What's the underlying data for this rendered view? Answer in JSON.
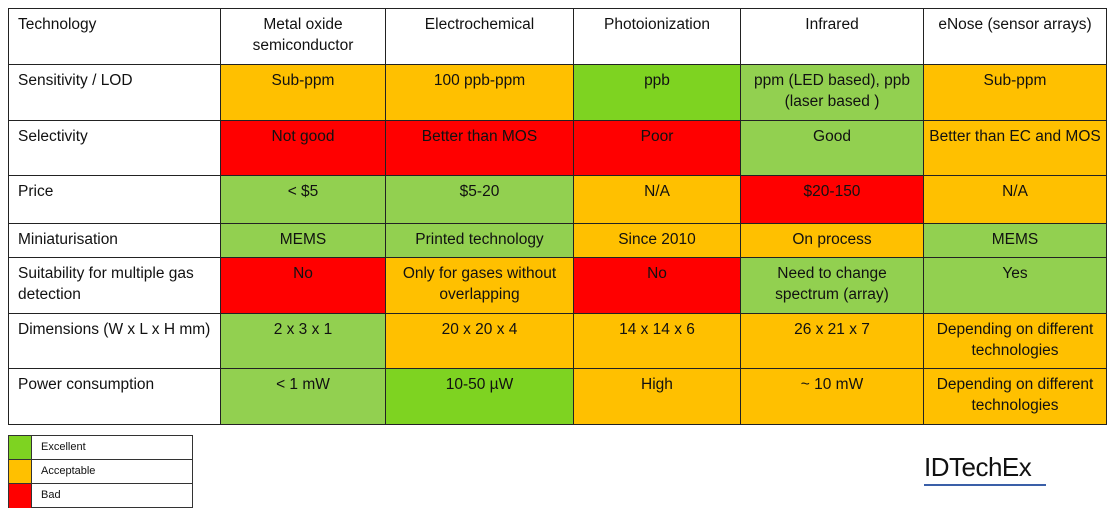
{
  "table": {
    "header": [
      "Technology",
      "Metal oxide semiconductor",
      "Electrochemical",
      "Photoionization",
      "Infrared",
      "eNose (sensor arrays)"
    ],
    "rows": [
      {
        "label": "Sensitivity / LOD",
        "cells": [
          {
            "text": "Sub-ppm",
            "rating": "acceptable"
          },
          {
            "text": "100 ppb-ppm",
            "rating": "acceptable"
          },
          {
            "text": "ppb",
            "rating": "excellent-bright"
          },
          {
            "text": "ppm (LED based), ppb (laser based )",
            "rating": "excellent"
          },
          {
            "text": "Sub-ppm",
            "rating": "acceptable"
          }
        ]
      },
      {
        "label": "Selectivity",
        "cells": [
          {
            "text": "Not good",
            "rating": "bad"
          },
          {
            "text": "Better than MOS",
            "rating": "bad"
          },
          {
            "text": "Poor",
            "rating": "bad"
          },
          {
            "text": "Good",
            "rating": "excellent"
          },
          {
            "text": "Better than EC and MOS",
            "rating": "acceptable"
          }
        ]
      },
      {
        "label": "Price",
        "cells": [
          {
            "text": "< $5",
            "rating": "excellent"
          },
          {
            "text": "$5-20",
            "rating": "excellent"
          },
          {
            "text": "N/A",
            "rating": "acceptable"
          },
          {
            "text": "$20-150",
            "rating": "bad"
          },
          {
            "text": "N/A",
            "rating": "acceptable"
          }
        ]
      },
      {
        "label": "Miniaturisation",
        "cells": [
          {
            "text": "MEMS",
            "rating": "excellent"
          },
          {
            "text": "Printed technology",
            "rating": "excellent"
          },
          {
            "text": "Since 2010",
            "rating": "acceptable"
          },
          {
            "text": "On process",
            "rating": "acceptable"
          },
          {
            "text": "MEMS",
            "rating": "excellent"
          }
        ]
      },
      {
        "label": "Suitability for multiple gas detection",
        "cells": [
          {
            "text": "No",
            "rating": "bad"
          },
          {
            "text": "Only for gases without overlapping",
            "rating": "acceptable"
          },
          {
            "text": "No",
            "rating": "bad"
          },
          {
            "text": "Need to change spectrum (array)",
            "rating": "excellent"
          },
          {
            "text": "Yes",
            "rating": "excellent"
          }
        ]
      },
      {
        "label": "Dimensions (W x L x H mm)",
        "cells": [
          {
            "text": "2 x 3 x 1",
            "rating": "excellent"
          },
          {
            "text": "20 x 20 x 4",
            "rating": "acceptable"
          },
          {
            "text": "14 x 14 x 6",
            "rating": "acceptable"
          },
          {
            "text": "26 x 21 x 7",
            "rating": "acceptable"
          },
          {
            "text": "Depending on different technologies",
            "rating": "acceptable"
          }
        ]
      },
      {
        "label": "Power consumption",
        "cells": [
          {
            "text": "< 1 mW",
            "rating": "excellent"
          },
          {
            "text": "10-50 µW",
            "rating": "excellent-bright"
          },
          {
            "text": "High",
            "rating": "acceptable"
          },
          {
            "text": "~ 10 mW",
            "rating": "acceptable"
          },
          {
            "text": "Depending on different technologies",
            "rating": "acceptable"
          }
        ]
      }
    ]
  },
  "legend": [
    {
      "label": "Excellent",
      "color": "#7ed321"
    },
    {
      "label": "Acceptable",
      "color": "#ffc000"
    },
    {
      "label": "Bad",
      "color": "#ff0000"
    }
  ],
  "colors": {
    "excellent": "#92d050",
    "excellent_bright": "#7ed321",
    "acceptable": "#ffc000",
    "bad": "#ff0000",
    "logo_underline": "#3a5fa8"
  },
  "logo": {
    "text": "IDTechEx"
  }
}
